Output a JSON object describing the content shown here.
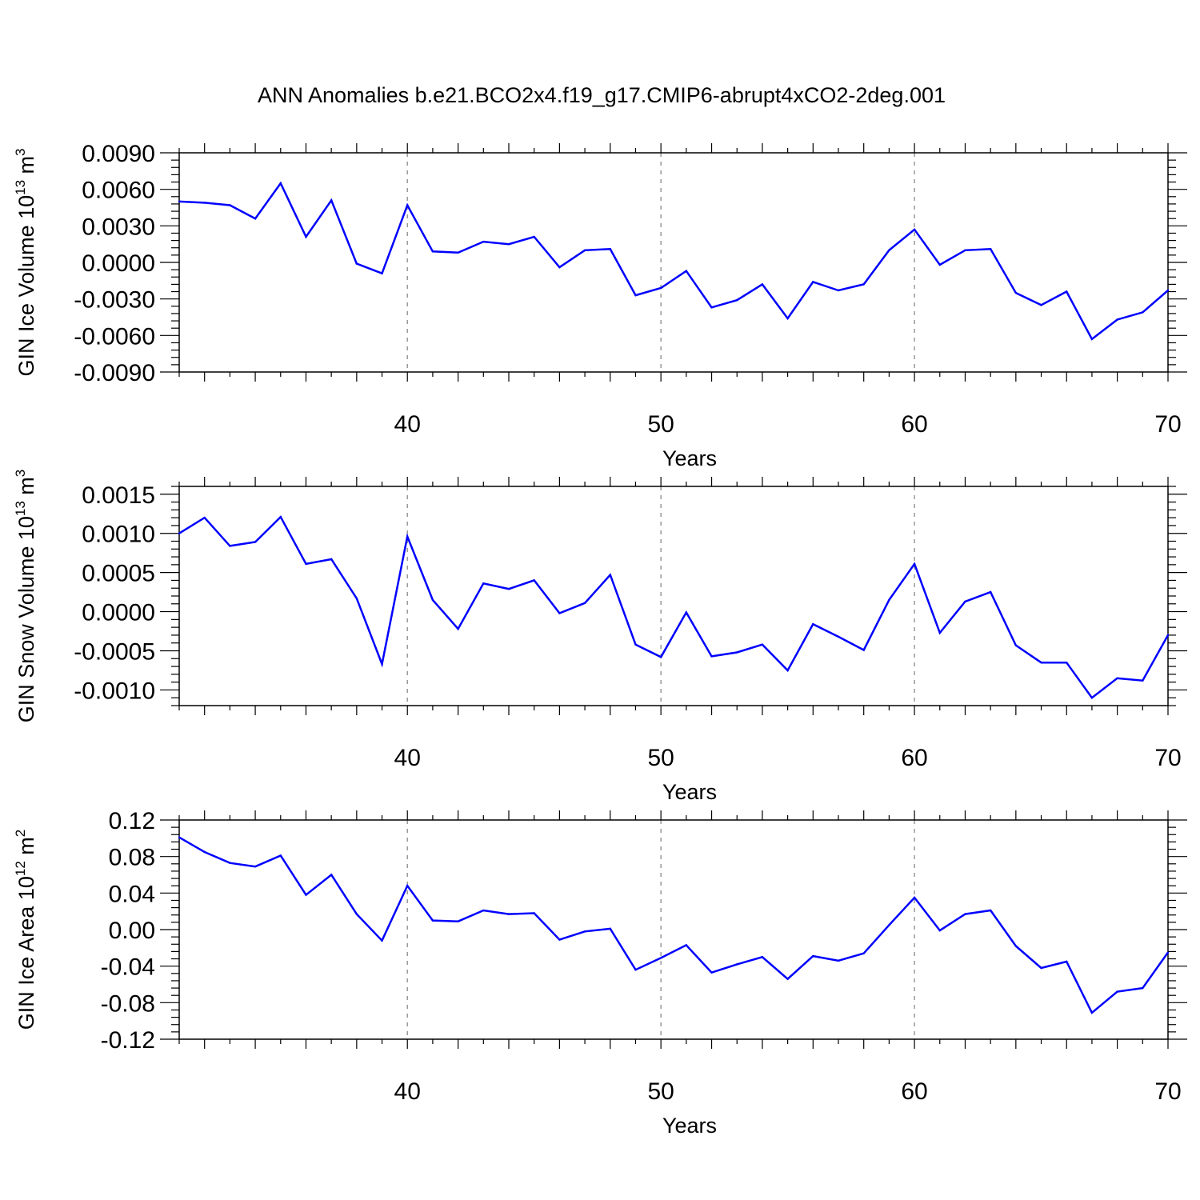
{
  "title": "ANN Anomalies b.e21.BCO2x4.f19_g17.CMIP6-abrupt4xCO2-2deg.001",
  "colors": {
    "line": "#0000ff",
    "axis": "#000000",
    "grid": "#999999"
  },
  "chart_data": [
    {
      "type": "line",
      "ylabel": "GIN Ice Volume 10",
      "ylabel_exp": "13",
      "ylabel_unit": " m",
      "ylabel_unit_exp": "3",
      "xlabel": "Years",
      "xlim": [
        31,
        70
      ],
      "ylim": [
        -0.009,
        0.009
      ],
      "xticks": [
        40,
        50,
        60,
        70
      ],
      "xtick_labels": [
        "40",
        "50",
        "60",
        "70"
      ],
      "yticks": [
        0.009,
        0.006,
        0.003,
        0.0,
        -0.003,
        -0.006,
        -0.009
      ],
      "ytick_labels": [
        "0.0090",
        "0.0060",
        "0.0030",
        "0.0000",
        "-0.0030",
        "-0.0060",
        "-0.0090"
      ],
      "grid_x": [
        40,
        50,
        60
      ],
      "x": [
        31,
        32,
        33,
        34,
        35,
        36,
        37,
        38,
        39,
        40,
        41,
        42,
        43,
        44,
        45,
        46,
        47,
        48,
        49,
        50,
        51,
        52,
        53,
        54,
        55,
        56,
        57,
        58,
        59,
        60,
        61,
        62,
        63,
        64,
        65,
        66,
        67,
        68,
        69,
        70
      ],
      "values": [
        0.005,
        0.0049,
        0.0047,
        0.0036,
        0.0065,
        0.0021,
        0.0051,
        -0.0001,
        -0.0009,
        0.0047,
        0.0009,
        0.0008,
        0.0017,
        0.0015,
        0.0021,
        -0.0004,
        0.001,
        0.0011,
        -0.0027,
        -0.0021,
        -0.0007,
        -0.0037,
        -0.0031,
        -0.0018,
        -0.0046,
        -0.0016,
        -0.0023,
        -0.0018,
        0.001,
        0.0027,
        -0.0002,
        0.001,
        0.0011,
        -0.0025,
        -0.0035,
        -0.0024,
        -0.0063,
        -0.0047,
        -0.0041,
        -0.0023
      ]
    },
    {
      "type": "line",
      "ylabel": "GIN Snow Volume 10",
      "ylabel_exp": "13",
      "ylabel_unit": " m",
      "ylabel_unit_exp": "3",
      "xlabel": "Years",
      "xlim": [
        31,
        70
      ],
      "ylim": [
        -0.0012,
        0.0016
      ],
      "xticks": [
        40,
        50,
        60,
        70
      ],
      "xtick_labels": [
        "40",
        "50",
        "60",
        "70"
      ],
      "yticks": [
        0.0015,
        0.001,
        0.0005,
        0.0,
        -0.0005,
        -0.001
      ],
      "ytick_labels": [
        "0.0015",
        "0.0010",
        "0.0005",
        "0.0000",
        "-0.0005",
        "-0.0010"
      ],
      "grid_x": [
        40,
        50,
        60
      ],
      "x": [
        31,
        32,
        33,
        34,
        35,
        36,
        37,
        38,
        39,
        40,
        41,
        42,
        43,
        44,
        45,
        46,
        47,
        48,
        49,
        50,
        51,
        52,
        53,
        54,
        55,
        56,
        57,
        58,
        59,
        60,
        61,
        62,
        63,
        64,
        65,
        66,
        67,
        68,
        69,
        70
      ],
      "values": [
        0.001,
        0.0012,
        0.00084,
        0.00089,
        0.00121,
        0.00061,
        0.00067,
        0.00017,
        -0.00067,
        0.00096,
        0.00015,
        -0.00022,
        0.00036,
        0.00029,
        0.0004,
        -2e-05,
        0.00011,
        0.00047,
        -0.00042,
        -0.00058,
        -1e-05,
        -0.00057,
        -0.00052,
        -0.00042,
        -0.00075,
        -0.00016,
        -0.00032,
        -0.00049,
        0.00015,
        0.00061,
        -0.00027,
        0.00013,
        0.00025,
        -0.00043,
        -0.00065,
        -0.00065,
        -0.0011,
        -0.00085,
        -0.00088,
        -0.0003
      ]
    },
    {
      "type": "line",
      "ylabel": "GIN Ice Area 10",
      "ylabel_exp": "12",
      "ylabel_unit": " m",
      "ylabel_unit_exp": "2",
      "xlabel": "Years",
      "xlim": [
        31,
        70
      ],
      "ylim": [
        -0.12,
        0.12
      ],
      "xticks": [
        40,
        50,
        60,
        70
      ],
      "xtick_labels": [
        "40",
        "50",
        "60",
        "70"
      ],
      "yticks": [
        0.12,
        0.08,
        0.04,
        0.0,
        -0.04,
        -0.08,
        -0.12
      ],
      "ytick_labels": [
        "0.12",
        "0.08",
        "0.04",
        "0.00",
        "-0.04",
        "-0.08",
        "-0.12"
      ],
      "grid_x": [
        40,
        50,
        60
      ],
      "x": [
        31,
        32,
        33,
        34,
        35,
        36,
        37,
        38,
        39,
        40,
        41,
        42,
        43,
        44,
        45,
        46,
        47,
        48,
        49,
        50,
        51,
        52,
        53,
        54,
        55,
        56,
        57,
        58,
        59,
        60,
        61,
        62,
        63,
        64,
        65,
        66,
        67,
        68,
        69,
        70
      ],
      "values": [
        0.101,
        0.085,
        0.073,
        0.069,
        0.081,
        0.038,
        0.06,
        0.017,
        -0.012,
        0.048,
        0.01,
        0.009,
        0.021,
        0.017,
        0.018,
        -0.011,
        -0.002,
        0.001,
        -0.044,
        -0.031,
        -0.017,
        -0.047,
        -0.038,
        -0.03,
        -0.054,
        -0.029,
        -0.034,
        -0.026,
        0.005,
        0.035,
        -0.001,
        0.017,
        0.021,
        -0.018,
        -0.042,
        -0.035,
        -0.091,
        -0.068,
        -0.064,
        -0.025
      ]
    }
  ]
}
